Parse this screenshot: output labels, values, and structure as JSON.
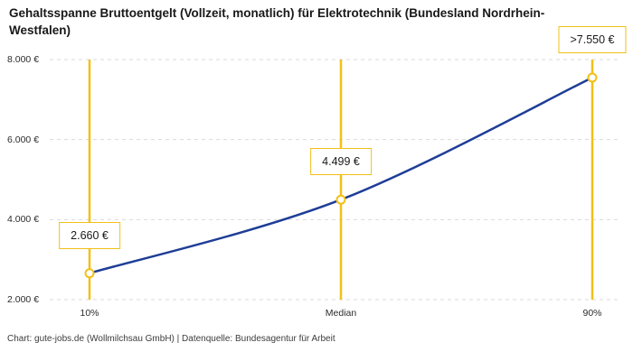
{
  "title": "Gehaltsspanne Bruttoentgelt (Vollzeit, monatlich) für Elektrotechnik (Bundesland Nordrhein-Westfalen)",
  "footer": "Chart: gute-jobs.de (Wollmilchsau GmbH) | Datenquelle: Bundesagentur für Arbeit",
  "chart_data": {
    "type": "line",
    "title": "Gehaltsspanne Bruttoentgelt (Vollzeit, monatlich) für Elektrotechnik (Bundesland Nordrhein-Westfalen)",
    "categories": [
      "10%",
      "Median",
      "90%"
    ],
    "values": [
      2660,
      4499,
      7550
    ],
    "point_labels": [
      "2.660 €",
      "4.499 €",
      ">7.550 €"
    ],
    "ylim": [
      2000,
      8000
    ],
    "yticks": [
      2000,
      4000,
      6000,
      8000
    ],
    "ytick_labels": [
      "2.000 €",
      "4.000 €",
      "6.000 €",
      "8.000 €"
    ],
    "xlabel": "",
    "ylabel": "",
    "grid": "dashed horizontal",
    "legend": "none",
    "annotations": "yellow vertical range lines at each percentile with boxed value labels",
    "colors": {
      "line": "#1e3d96",
      "accent": "#f2c017",
      "marker_fill": "#ffffff",
      "grid": "#d9d9d9"
    }
  }
}
